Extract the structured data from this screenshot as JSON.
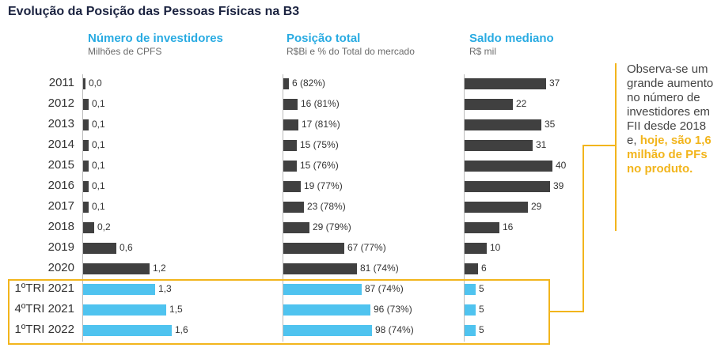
{
  "title": "Evolução da Posição das Pessoas Físicas na B3",
  "colors": {
    "dark": "#404040",
    "highlight": "#4fc3ef",
    "accent": "#f2b51c",
    "header": "#29abe2"
  },
  "note": {
    "text": "Observa-se um grande aumento no número de investidores em FII desde 2018 e,",
    "strong": "hoje, são 1,6 milhão de PFs no produto."
  },
  "chart_data": {
    "type": "bar",
    "orientation": "horizontal",
    "categories": [
      "2011",
      "2012",
      "2013",
      "2014",
      "2015",
      "2016",
      "2017",
      "2018",
      "2019",
      "2020",
      "1ºTRI 2021",
      "4ºTRI 2021",
      "1ºTRI 2022"
    ],
    "highlighted_categories": [
      "1ºTRI 2021",
      "4ºTRI 2021",
      "1ºTRI 2022"
    ],
    "panels": [
      {
        "title": "Número de investidores",
        "subtitle": "Milhões de CPFS",
        "values": [
          0.0,
          0.1,
          0.1,
          0.1,
          0.1,
          0.1,
          0.1,
          0.2,
          0.6,
          1.2,
          1.3,
          1.5,
          1.6
        ],
        "labels": [
          "0,0",
          "0,1",
          "0,1",
          "0,1",
          "0,1",
          "0,1",
          "0,1",
          "0,2",
          "0,6",
          "1,2",
          "1,3",
          "1,5",
          "1,6"
        ],
        "xlim": [
          0,
          1.6
        ]
      },
      {
        "title": "Posição total",
        "subtitle": "R$Bi e % do Total do mercado",
        "values": [
          6,
          16,
          17,
          15,
          15,
          19,
          23,
          29,
          67,
          81,
          87,
          96,
          98
        ],
        "percent_of_market": [
          82,
          81,
          81,
          75,
          76,
          77,
          78,
          79,
          77,
          74,
          74,
          73,
          74
        ],
        "labels": [
          "6 (82%)",
          "16 (81%)",
          "17 (81%)",
          "15 (75%)",
          "15 (76%)",
          "19 (77%)",
          "23 (78%)",
          "29 (79%)",
          "67 (77%)",
          "81 (74%)",
          "87 (74%)",
          "96 (73%)",
          "98 (74%)"
        ],
        "xlim": [
          0,
          98
        ]
      },
      {
        "title": "Saldo mediano",
        "subtitle": "R$ mil",
        "values": [
          37,
          22,
          35,
          31,
          40,
          39,
          29,
          16,
          10,
          6,
          5,
          5,
          5
        ],
        "labels": [
          "37",
          "22",
          "35",
          "31",
          "40",
          "39",
          "29",
          "16",
          "10",
          "6",
          "5",
          "5",
          "5"
        ],
        "xlim": [
          0,
          40
        ]
      }
    ]
  }
}
